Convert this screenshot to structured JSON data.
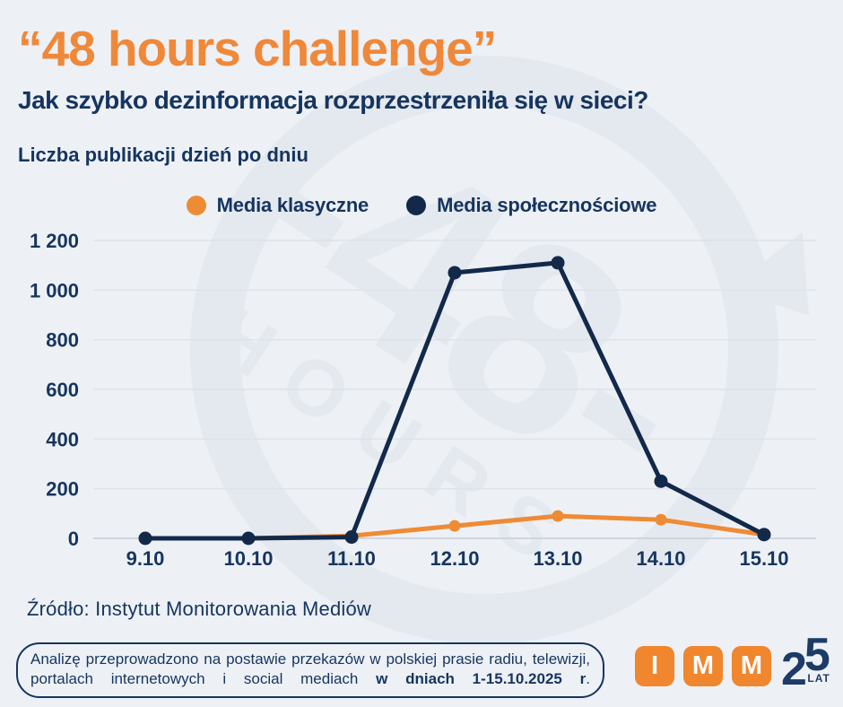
{
  "page": {
    "title": "“48 hours challenge”",
    "subtitle": "Jak szybko dezinformacja rozprzestrzeniła się w sieci?",
    "caption": "Liczba publikacji dzień po dniu",
    "source": "Źródło: Instytut Monitorowania Mediów"
  },
  "colors": {
    "background": "#edf1f6",
    "orange": "#ee8b35",
    "navy_text": "#16355e",
    "navy_line": "#12294a",
    "grid": "#dbe0e7",
    "axis_zero": "#c6ced8",
    "watermark": "#e4e9f0"
  },
  "chart_data": {
    "type": "line",
    "title": "Liczba publikacji dzień po dniu",
    "x": [
      "9.10",
      "10.10",
      "11.10",
      "12.10",
      "13.10",
      "14.10",
      "15.10"
    ],
    "series": [
      {
        "name": "Media klasyczne",
        "color": "#ee8b35",
        "values": [
          0,
          0,
          10,
          50,
          90,
          75,
          15
        ]
      },
      {
        "name": "Media społecznościowe",
        "color": "#12294a",
        "values": [
          0,
          0,
          5,
          1070,
          1110,
          230,
          15
        ]
      }
    ],
    "xlabel": "",
    "ylabel": "",
    "ylim": [
      0,
      1200
    ],
    "ytick_step": 200,
    "ytick_labels": [
      "0",
      "200",
      "400",
      "600",
      "800",
      "1 000",
      "1 200"
    ],
    "grid": "horizontal",
    "legend_position": "top-center"
  },
  "footer": {
    "note_regular": "Analizę przeprowadzono na postawie przekazów w polskiej prasie radiu, telewizji, portalach internetowych i social mediach ",
    "note_bold": "w dniach 1-15.10.2025 r",
    "note_end": "."
  },
  "logo": {
    "letters": [
      "I",
      "M",
      "M"
    ],
    "years": "25",
    "years_label": "LAT"
  },
  "watermark": {
    "line1": "-48-",
    "line2": "HOURS"
  }
}
